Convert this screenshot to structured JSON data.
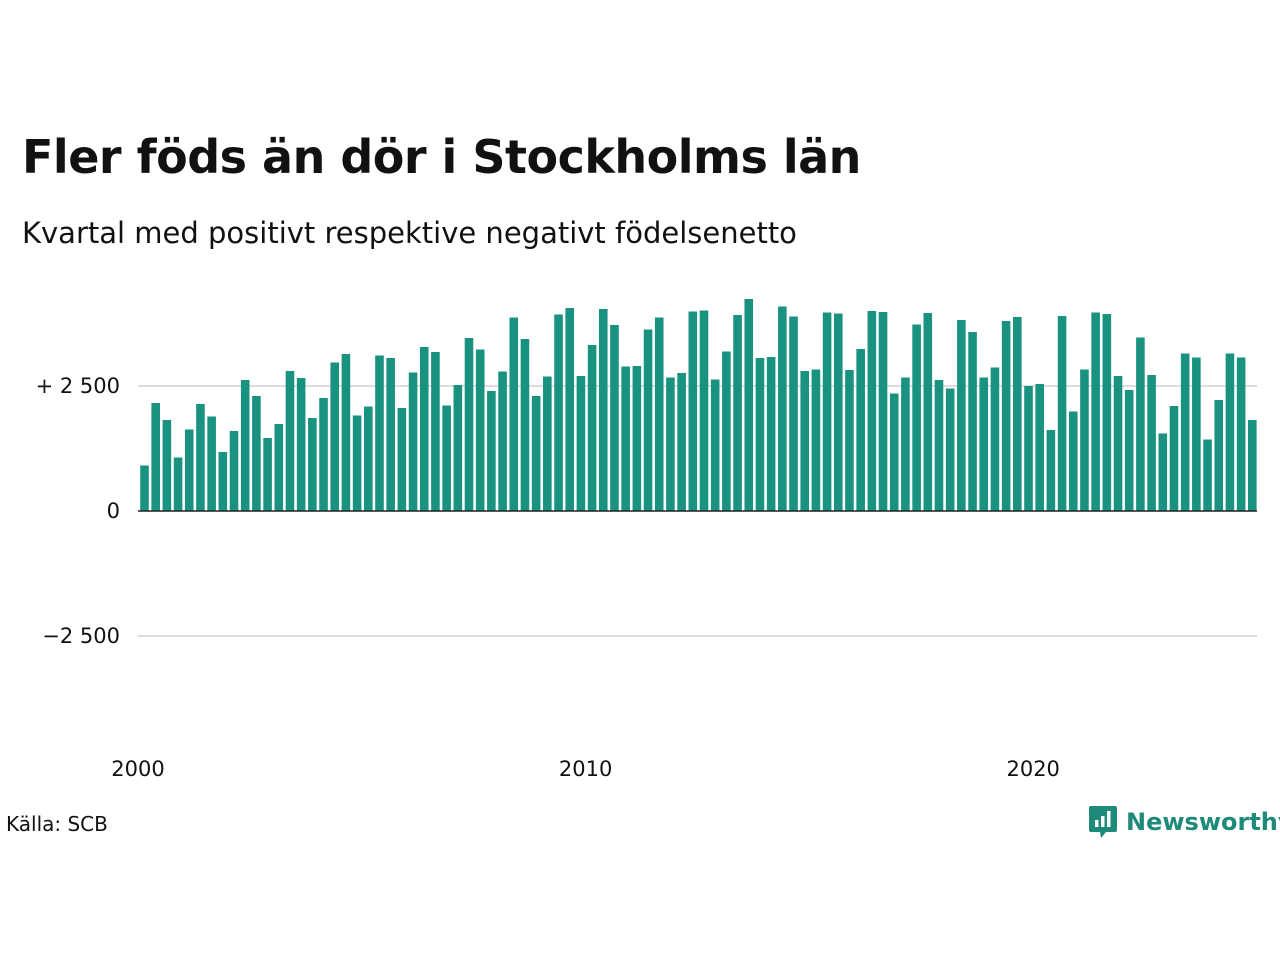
{
  "header": {
    "title": "Fler föds än dör i Stockholms län",
    "subtitle": "Kvartal med positivt respektive negativt födelsenetto"
  },
  "footer": {
    "source": "Källa: SCB",
    "brand": "Newsworthy"
  },
  "colors": {
    "bar": "#1a9280",
    "brand": "#1e8a79",
    "grid": "#dddddd",
    "baseline": "#222222"
  },
  "chart_data": {
    "type": "bar",
    "x_start": "2000 Q1",
    "frequency": "quarter",
    "y_ticks": [
      {
        "value": 2500,
        "label": "+ 2 500"
      },
      {
        "value": 0,
        "label": "0"
      },
      {
        "value": -2500,
        "label": "−2 500"
      }
    ],
    "x_ticks": [
      {
        "value": 2000,
        "label": "2000"
      },
      {
        "value": 2010,
        "label": "2010"
      },
      {
        "value": 2020,
        "label": "2020"
      }
    ],
    "ylim": [
      -4500,
      4250
    ],
    "values": [
      910,
      2160,
      1820,
      1070,
      1630,
      2140,
      1890,
      1180,
      1600,
      2620,
      2300,
      1460,
      1740,
      2800,
      2660,
      1860,
      2260,
      2970,
      3140,
      1910,
      2090,
      3110,
      3060,
      2060,
      2770,
      3280,
      3180,
      2110,
      2520,
      3460,
      3230,
      2400,
      2790,
      3870,
      3440,
      2300,
      2690,
      3930,
      4060,
      2700,
      3320,
      4040,
      3720,
      2890,
      2900,
      3630,
      3870,
      2670,
      2760,
      3990,
      4010,
      2630,
      3190,
      3920,
      4240,
      3060,
      3080,
      4090,
      3890,
      2800,
      2830,
      3970,
      3950,
      2820,
      3240,
      4000,
      3980,
      2350,
      2670,
      3730,
      3960,
      2620,
      2450,
      3820,
      3580,
      2670,
      2870,
      3800,
      3880,
      2500,
      2540,
      1620,
      3900,
      1990,
      2830,
      3970,
      3940,
      2700,
      2420,
      3470,
      2720,
      1550,
      2100,
      3150,
      3070,
      1430,
      2220,
      3150,
      3070,
      1820
    ]
  }
}
